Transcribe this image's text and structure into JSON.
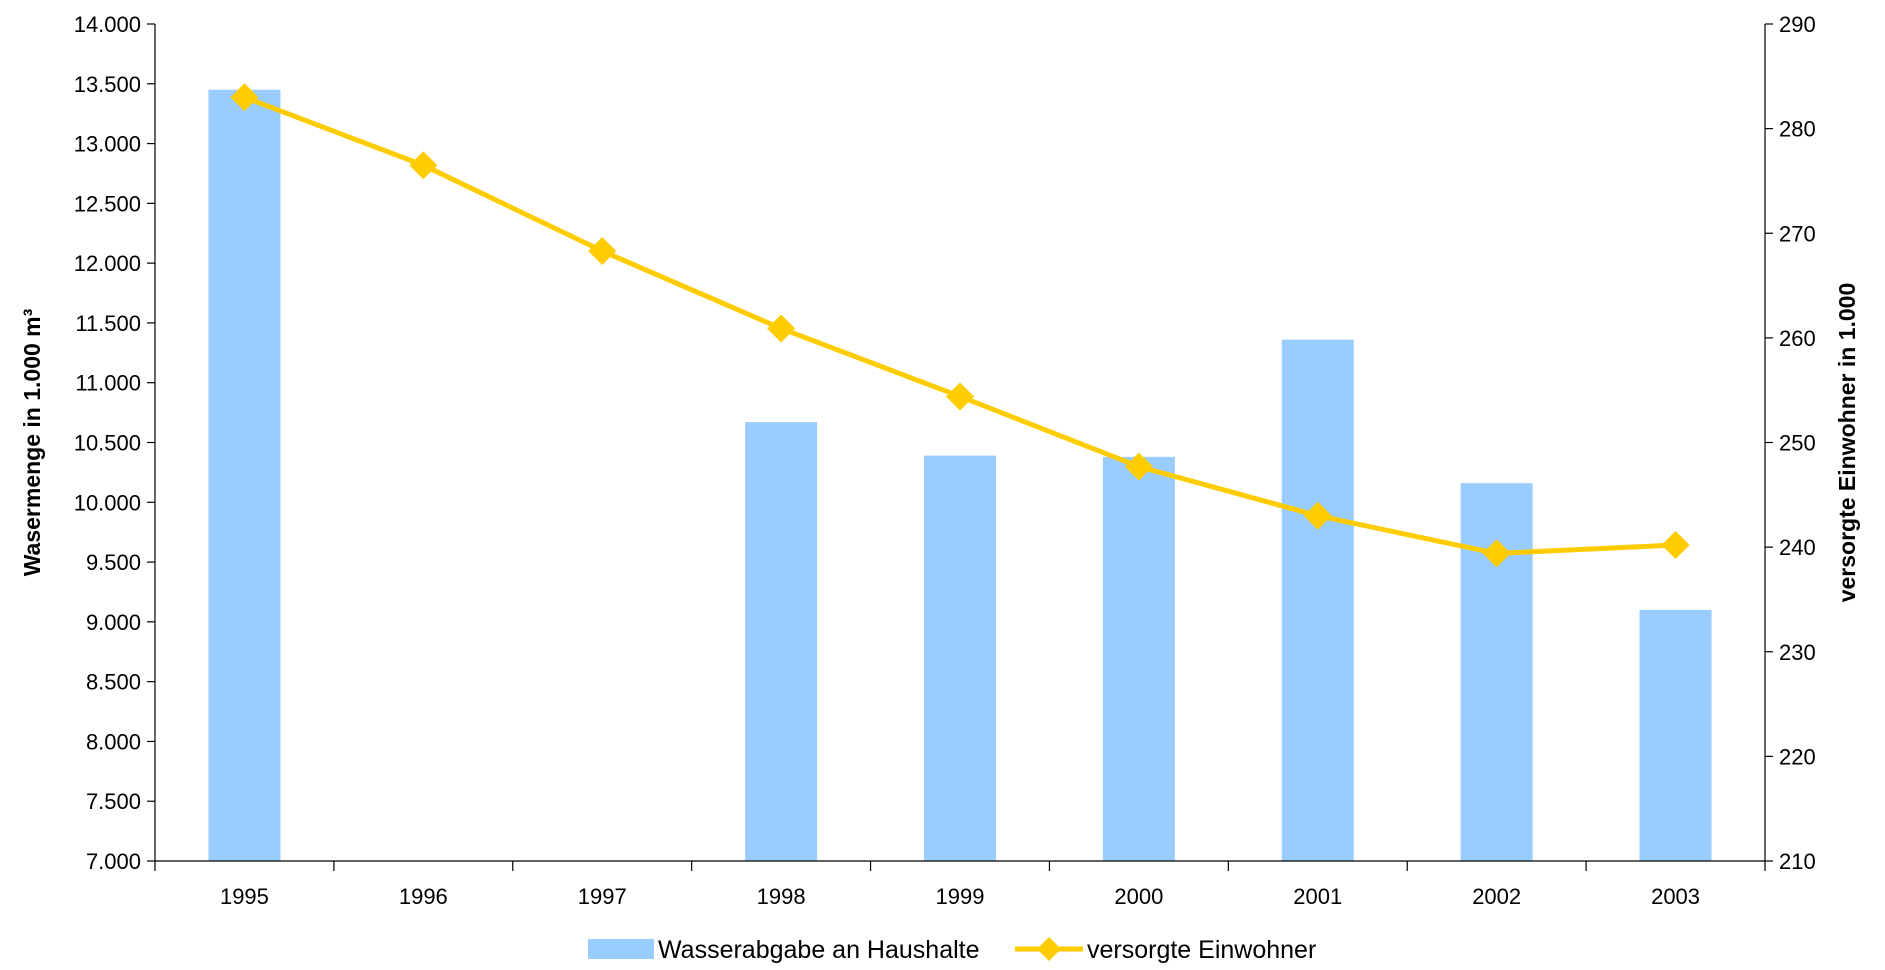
{
  "chart_data": {
    "type": "bar",
    "categories": [
      "1995",
      "1996",
      "1997",
      "1998",
      "1999",
      "2000",
      "2001",
      "2002",
      "2003"
    ],
    "series": [
      {
        "name": "Wasserabgabe an Haushalte",
        "type": "bar",
        "axis": "left",
        "color": "#99ccff",
        "values": [
          13450,
          null,
          null,
          10670,
          10390,
          10380,
          11360,
          10160,
          9100
        ]
      },
      {
        "name": "versorgte Einwohner",
        "type": "line",
        "axis": "right",
        "color": "#ffcc00",
        "marker": "diamond",
        "values": [
          283,
          276.5,
          268.3,
          260.9,
          254.4,
          247.7,
          243.0,
          239.4,
          240.2
        ]
      }
    ],
    "ylabel": "Wasermenge in 1.000 m³",
    "ylim": [
      7000,
      14000
    ],
    "yticks": [
      "7.000",
      "7.500",
      "8.000",
      "8.500",
      "9.000",
      "9.500",
      "10.000",
      "10.500",
      "11.000",
      "11.500",
      "12.000",
      "12.500",
      "13.000",
      "13.500",
      "14.000"
    ],
    "y2label": "versorgte Einwohner in 1.000",
    "y2lim": [
      210,
      290
    ],
    "y2ticks": [
      "210",
      "220",
      "230",
      "240",
      "250",
      "260",
      "270",
      "280",
      "290"
    ],
    "legend_position": "bottom",
    "grid": false
  }
}
